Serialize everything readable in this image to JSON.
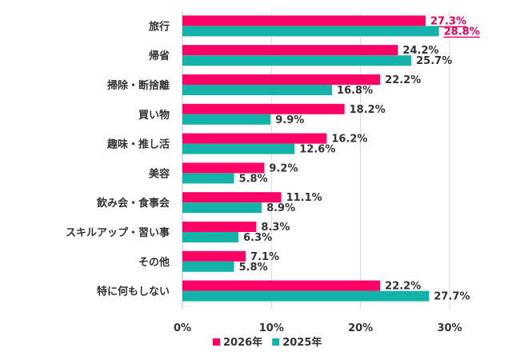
{
  "chart_data": {
    "type": "bar",
    "orientation": "horizontal",
    "categories": [
      "旅行",
      "帰省",
      "掃除・断捨離",
      "買い物",
      "趣味・推し活",
      "美容",
      "飲み会・食事会",
      "スキルアップ・習い事",
      "その他",
      "特に何もしない"
    ],
    "series": [
      {
        "name": "2026年",
        "color": "#ff0066",
        "values": [
          27.3,
          24.2,
          22.2,
          18.2,
          16.2,
          9.2,
          11.1,
          8.3,
          7.1,
          22.2
        ],
        "labels": [
          "27.3%",
          "24.2%",
          "22.2%",
          "18.2%",
          "16.2%",
          "9.2%",
          "11.1%",
          "8.3%",
          "7.1%",
          "22.2%"
        ]
      },
      {
        "name": "2025年",
        "color": "#14b3aa",
        "values": [
          28.8,
          25.7,
          16.8,
          9.9,
          12.6,
          5.8,
          8.9,
          6.3,
          5.8,
          27.7
        ],
        "labels": [
          "28.8%",
          "25.7%",
          "16.8%",
          "9.9%",
          "12.6%",
          "5.8%",
          "8.9%",
          "6.3%",
          "5.8%",
          "27.7%"
        ]
      }
    ],
    "highlighted": [
      "27.3%",
      "28.8%"
    ],
    "highlight_color": "#e5005a",
    "xlim": [
      0,
      30
    ],
    "xticks": [
      0,
      10,
      20,
      30
    ],
    "xtick_labels": [
      "0%",
      "10%",
      "20%",
      "30%"
    ],
    "grid": true,
    "legend_position": "bottom",
    "title": "",
    "xlabel": "",
    "ylabel": ""
  }
}
